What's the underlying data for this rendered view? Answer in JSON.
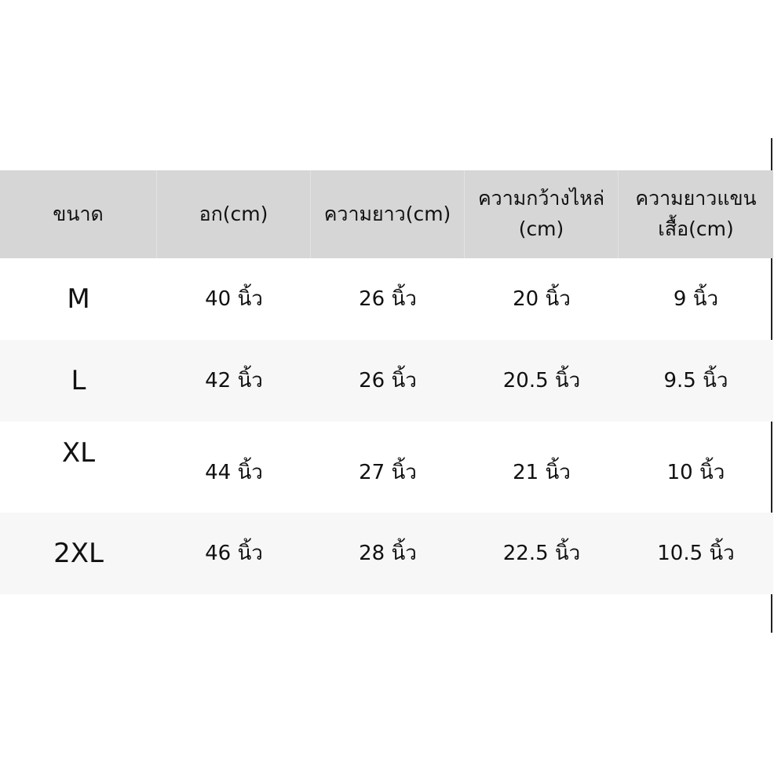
{
  "table": {
    "headers": [
      "ขนาด",
      "อก(cm)",
      "ความยาว(cm)",
      "ความกว้างไหล่ (cm)",
      "ความยาวแขนเสื้อ(cm)"
    ],
    "rows": [
      [
        "M",
        "40 นิ้ว",
        "26 นิ้ว",
        "20 นิ้ว",
        "9 นิ้ว"
      ],
      [
        "L",
        "42 นิ้ว",
        "26 นิ้ว",
        "20.5 นิ้ว",
        "9.5 นิ้ว"
      ],
      [
        "XL",
        "44 นิ้ว",
        "27 นิ้ว",
        "21 นิ้ว",
        "10 นิ้ว"
      ],
      [
        "2XL",
        "46 นิ้ว",
        "28 นิ้ว",
        "22.5 นิ้ว",
        "10.5 นิ้ว"
      ]
    ]
  },
  "colors": {
    "header_bg": "#d6d6d6",
    "alt_row_bg": "#f7f7f7",
    "text": "#111111"
  }
}
